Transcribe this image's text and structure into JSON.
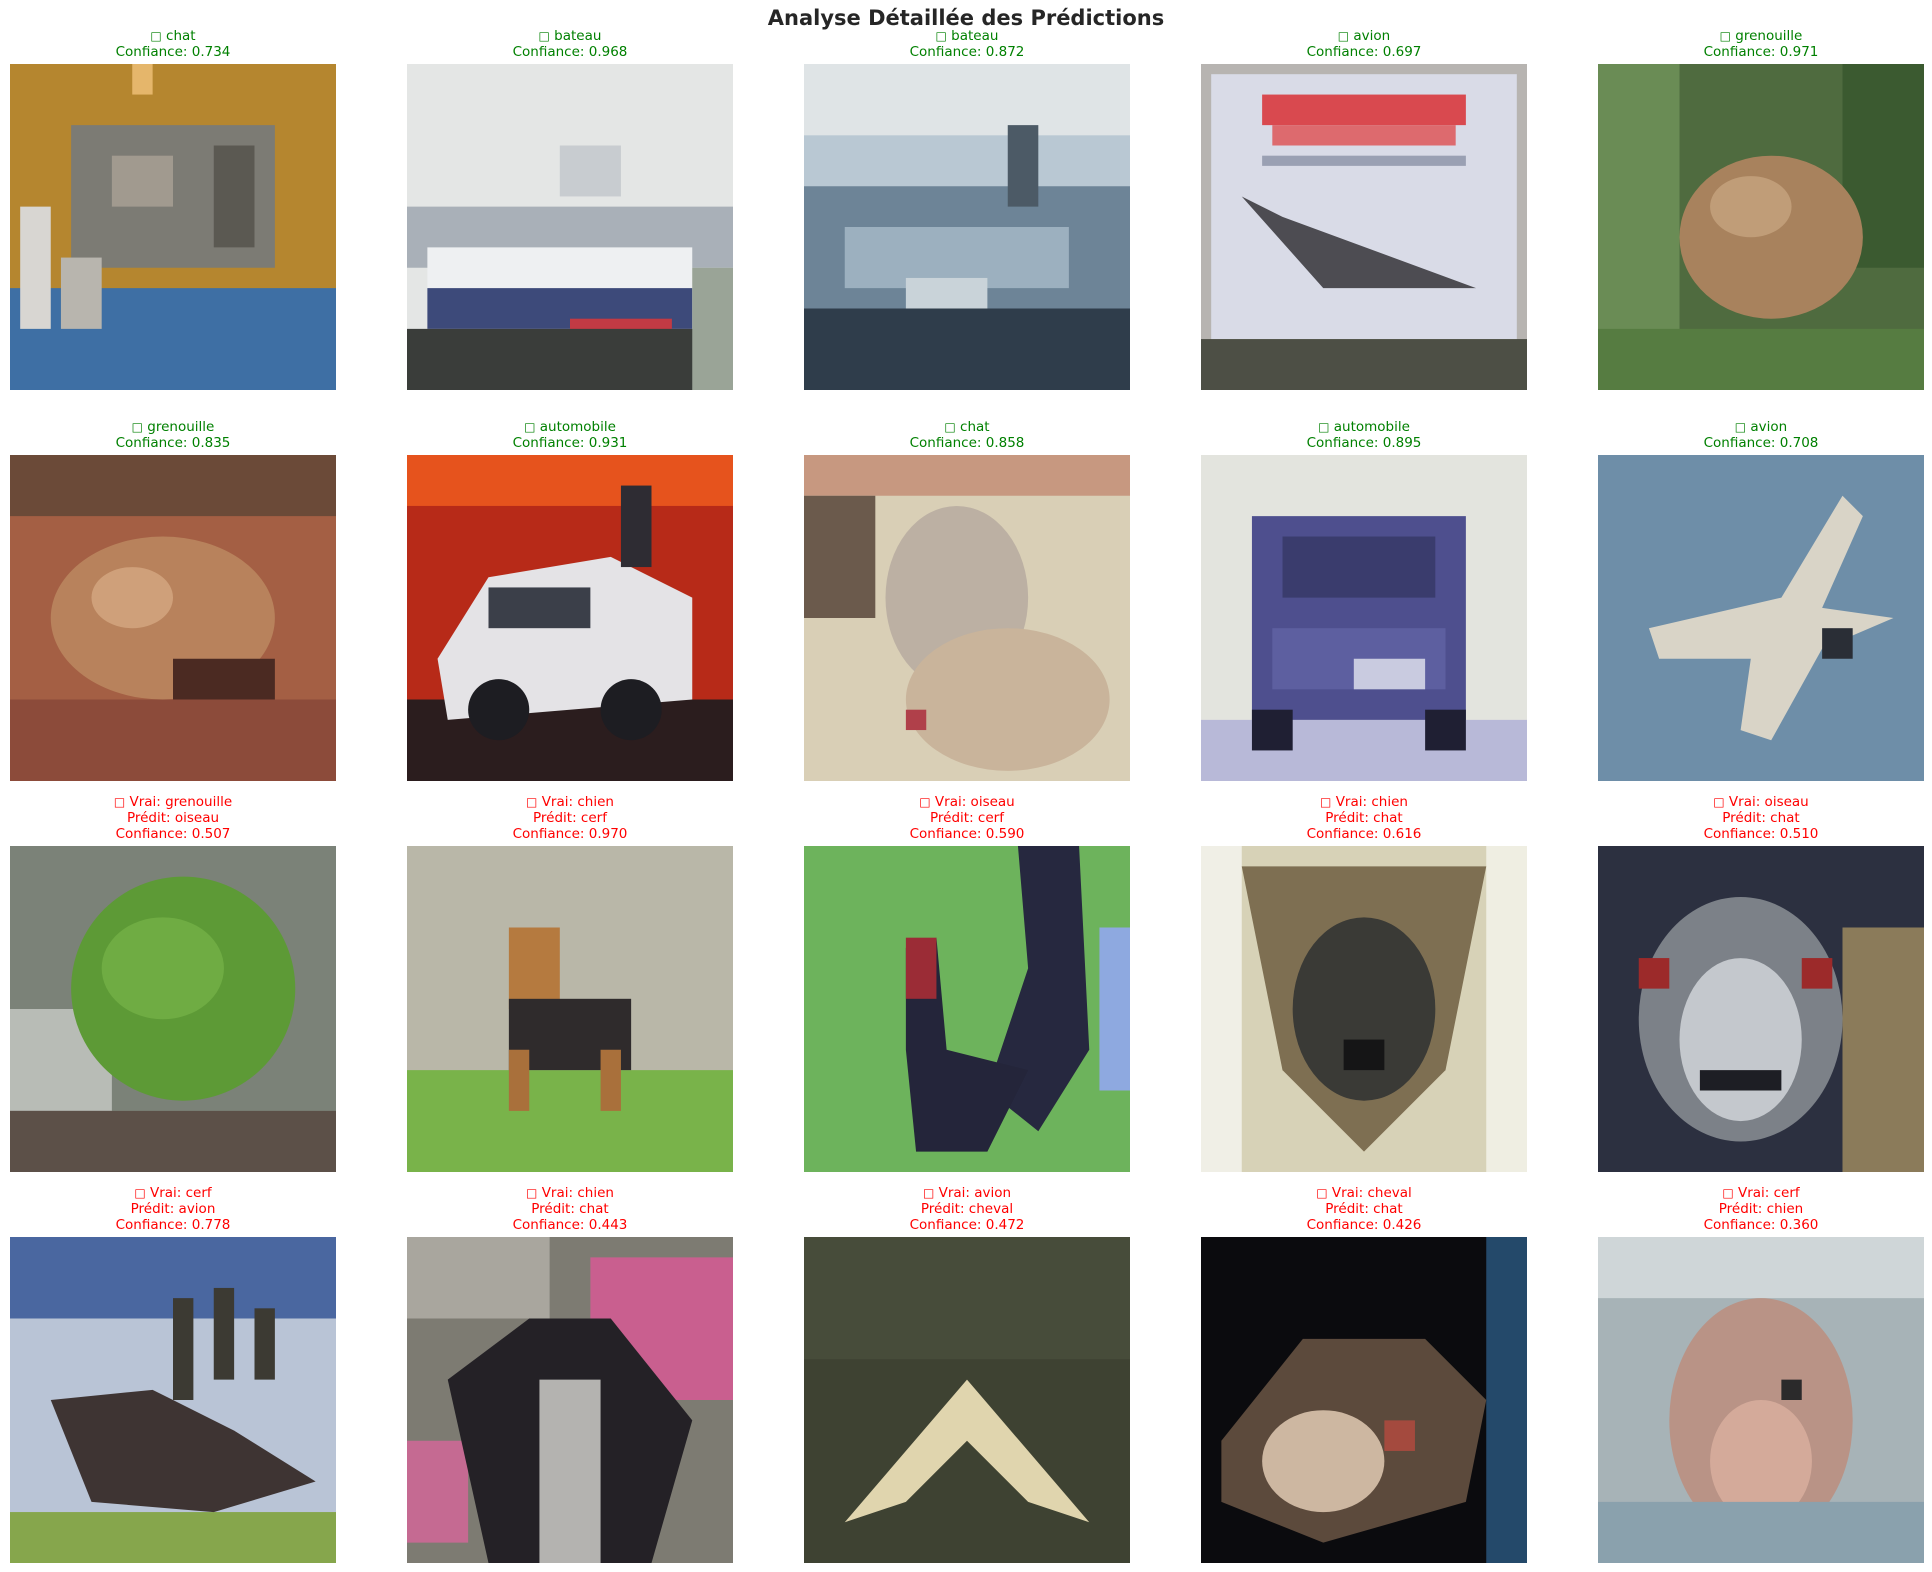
{
  "title": "Analyse Détaillée des Prédictions",
  "status_colors": {
    "correct": "#008000",
    "incorrect": "#ff0000"
  },
  "predictions": [
    {
      "glyph": "□",
      "label": "chat",
      "confidence_text": "Confiance: 0.734",
      "confidence": 0.734,
      "correct": true,
      "image_subject": "chat"
    },
    {
      "glyph": "□",
      "label": "bateau",
      "confidence_text": "Confiance: 0.968",
      "confidence": 0.968,
      "correct": true,
      "image_subject": "bateau"
    },
    {
      "glyph": "□",
      "label": "bateau",
      "confidence_text": "Confiance: 0.872",
      "confidence": 0.872,
      "correct": true,
      "image_subject": "bateau"
    },
    {
      "glyph": "□",
      "label": "avion",
      "confidence_text": "Confiance: 0.697",
      "confidence": 0.697,
      "correct": true,
      "image_subject": "avion"
    },
    {
      "glyph": "□",
      "label": "grenouille",
      "confidence_text": "Confiance: 0.971",
      "confidence": 0.971,
      "correct": true,
      "image_subject": "grenouille"
    },
    {
      "glyph": "□",
      "label": "grenouille",
      "confidence_text": "Confiance: 0.835",
      "confidence": 0.835,
      "correct": true,
      "image_subject": "grenouille"
    },
    {
      "glyph": "□",
      "label": "automobile",
      "confidence_text": "Confiance: 0.931",
      "confidence": 0.931,
      "correct": true,
      "image_subject": "automobile"
    },
    {
      "glyph": "□",
      "label": "chat",
      "confidence_text": "Confiance: 0.858",
      "confidence": 0.858,
      "correct": true,
      "image_subject": "chat"
    },
    {
      "glyph": "□",
      "label": "automobile",
      "confidence_text": "Confiance: 0.895",
      "confidence": 0.895,
      "correct": true,
      "image_subject": "automobile"
    },
    {
      "glyph": "□",
      "label": "avion",
      "confidence_text": "Confiance: 0.708",
      "confidence": 0.708,
      "correct": true,
      "image_subject": "avion"
    },
    {
      "glyph": "□",
      "true_text": "Vrai: grenouille",
      "pred_text": "Prédit: oiseau",
      "confidence_text": "Confiance: 0.507",
      "confidence": 0.507,
      "correct": false,
      "image_subject": "grenouille"
    },
    {
      "glyph": "□",
      "true_text": "Vrai: chien",
      "pred_text": "Prédit: cerf",
      "confidence_text": "Confiance: 0.970",
      "confidence": 0.97,
      "correct": false,
      "image_subject": "chien"
    },
    {
      "glyph": "□",
      "true_text": "Vrai: oiseau",
      "pred_text": "Prédit: cerf",
      "confidence_text": "Confiance: 0.590",
      "confidence": 0.59,
      "correct": false,
      "image_subject": "oiseau"
    },
    {
      "glyph": "□",
      "true_text": "Vrai: chien",
      "pred_text": "Prédit: chat",
      "confidence_text": "Confiance: 0.616",
      "confidence": 0.616,
      "correct": false,
      "image_subject": "chien"
    },
    {
      "glyph": "□",
      "true_text": "Vrai: oiseau",
      "pred_text": "Prédit: chat",
      "confidence_text": "Confiance: 0.510",
      "confidence": 0.51,
      "correct": false,
      "image_subject": "oiseau"
    },
    {
      "glyph": "□",
      "true_text": "Vrai: cerf",
      "pred_text": "Prédit: avion",
      "confidence_text": "Confiance: 0.778",
      "confidence": 0.778,
      "correct": false,
      "image_subject": "cerf"
    },
    {
      "glyph": "□",
      "true_text": "Vrai: chien",
      "pred_text": "Prédit: chat",
      "confidence_text": "Confiance: 0.443",
      "confidence": 0.443,
      "correct": false,
      "image_subject": "chien"
    },
    {
      "glyph": "□",
      "true_text": "Vrai: avion",
      "pred_text": "Prédit: cheval",
      "confidence_text": "Confiance: 0.472",
      "confidence": 0.472,
      "correct": false,
      "image_subject": "avion"
    },
    {
      "glyph": "□",
      "true_text": "Vrai: cheval",
      "pred_text": "Prédit: chat",
      "confidence_text": "Confiance: 0.426",
      "confidence": 0.426,
      "correct": false,
      "image_subject": "cheval"
    },
    {
      "glyph": "□",
      "true_text": "Vrai: cerf",
      "pred_text": "Prédit: chien",
      "confidence_text": "Confiance: 0.360",
      "confidence": 0.36,
      "correct": false,
      "image_subject": "cerf"
    }
  ]
}
